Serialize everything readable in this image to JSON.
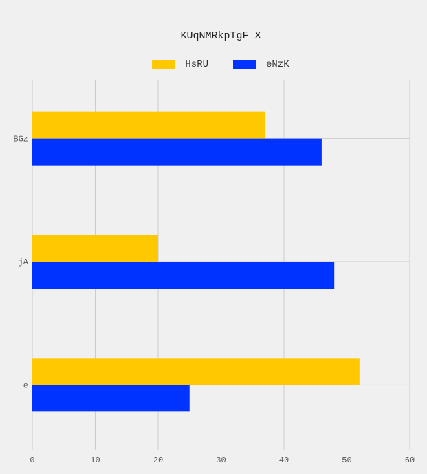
{
  "chart_data": {
    "type": "bar",
    "orientation": "horizontal",
    "title": "KUqNMRkpTgF X",
    "xlabel": "",
    "ylabel": "",
    "categories": [
      "BGz",
      "jA",
      "e"
    ],
    "series": [
      {
        "name": "HsRU",
        "color": "#ffc800",
        "values": [
          37,
          20,
          52
        ]
      },
      {
        "name": "eNzK",
        "color": "#0033ff",
        "values": [
          46,
          48,
          25
        ]
      }
    ],
    "xlim": [
      0,
      60
    ],
    "xticks": [
      "0",
      "10",
      "20",
      "30",
      "40",
      "50",
      "60"
    ],
    "grid": true,
    "legend_position": "top-center"
  }
}
